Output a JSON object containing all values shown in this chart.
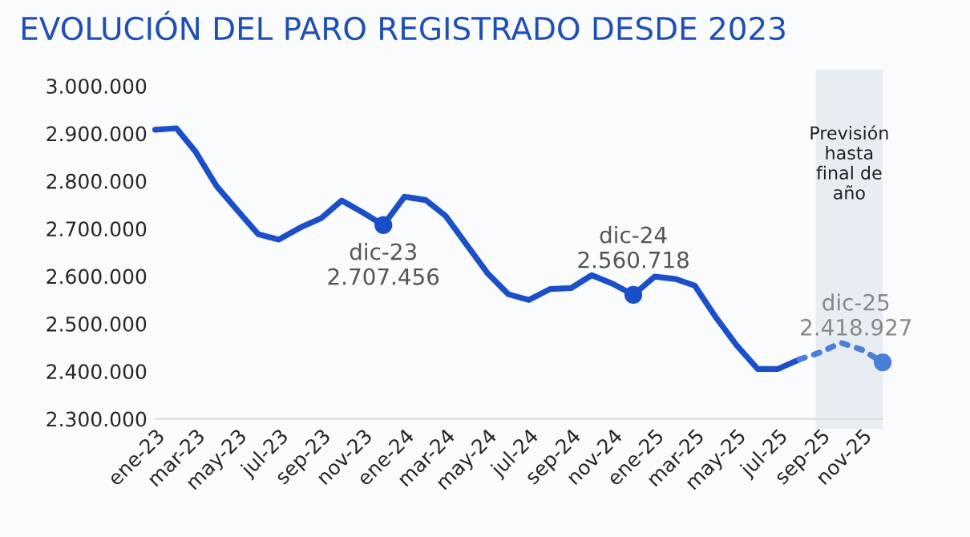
{
  "chart_data": {
    "type": "line",
    "title": "EVOLUCIÓN DEL PARO REGISTRADO DESDE 2023",
    "x": [
      "2023-01",
      "2023-02",
      "2023-03",
      "2023-04",
      "2023-05",
      "2023-06",
      "2023-07",
      "2023-08",
      "2023-09",
      "2023-10",
      "2023-11",
      "2023-12",
      "2024-01",
      "2024-02",
      "2024-03",
      "2024-04",
      "2024-05",
      "2024-06",
      "2024-07",
      "2024-08",
      "2024-09",
      "2024-10",
      "2024-11",
      "2024-12",
      "2025-01",
      "2025-02",
      "2025-03",
      "2025-04",
      "2025-05",
      "2025-06",
      "2025-07",
      "2025-08"
    ],
    "series": [
      {
        "color": "#1a4fc9",
        "line_style": "solid",
        "values": [
          2908000,
          2911000,
          2862000,
          2789000,
          2739000,
          2688000,
          2677000,
          2702000,
          2722000,
          2759000,
          2734000,
          2707456,
          2767000,
          2760000,
          2727000,
          2666000,
          2607000,
          2562000,
          2550000,
          2573000,
          2575000,
          2602000,
          2584000,
          2560718,
          2599000,
          2594000,
          2580000,
          2513000,
          2455000,
          2405000,
          2405000,
          2425000
        ]
      },
      {
        "color": "#4a7fd9",
        "line_style": "dotted",
        "x": [
          "2025-08",
          "2025-09",
          "2025-10",
          "2025-11",
          "2025-12"
        ],
        "values": [
          2425000,
          2440000,
          2460000,
          2445000,
          2418927
        ]
      }
    ],
    "xlim": [
      "2023-01",
      "2025-12"
    ],
    "xticks": [
      {
        "value": "2023-01",
        "label": "ene-23"
      },
      {
        "value": "2023-03",
        "label": "mar-23"
      },
      {
        "value": "2023-05",
        "label": "may-23"
      },
      {
        "value": "2023-07",
        "label": "jul-23"
      },
      {
        "value": "2023-09",
        "label": "sep-23"
      },
      {
        "value": "2023-11",
        "label": "nov-23"
      },
      {
        "value": "2024-01",
        "label": "ene-24"
      },
      {
        "value": "2024-03",
        "label": "mar-24"
      },
      {
        "value": "2024-05",
        "label": "may-24"
      },
      {
        "value": "2024-07",
        "label": "jul-24"
      },
      {
        "value": "2024-09",
        "label": "sep-24"
      },
      {
        "value": "2024-11",
        "label": "nov-24"
      },
      {
        "value": "2025-01",
        "label": "ene-25"
      },
      {
        "value": "2025-03",
        "label": "mar-25"
      },
      {
        "value": "2025-05",
        "label": "may-25"
      },
      {
        "value": "2025-07",
        "label": "jul-25"
      },
      {
        "value": "2025-09",
        "label": "sep-25"
      },
      {
        "value": "2025-11",
        "label": "nov-25"
      }
    ],
    "ylim": [
      2300000,
      3000000
    ],
    "yticks": [
      {
        "value": 2300000,
        "label": "2.300.000"
      },
      {
        "value": 2400000,
        "label": "2.400.000"
      },
      {
        "value": 2500000,
        "label": "2.500.000"
      },
      {
        "value": 2600000,
        "label": "2.600.000"
      },
      {
        "value": 2700000,
        "label": "2.700.000"
      },
      {
        "value": 2800000,
        "label": "2.800.000"
      },
      {
        "value": 2900000,
        "label": "2.900.000"
      },
      {
        "value": 3000000,
        "label": "3.000.000"
      }
    ],
    "bands": [
      {
        "axis": "x",
        "from": "2025-08-25",
        "to": "2025-12",
        "label": "Previsión\nhasta\nfinal de\naño",
        "color": "#e8edf4"
      }
    ],
    "annotations": [
      {
        "text": "dic-23\n2.707.456",
        "x": "2023-12",
        "y": 2707456
      },
      {
        "text": "dic-24\n2.560.718",
        "x": "2024-12",
        "y": 2560718
      },
      {
        "text": "dic-25\n2.418.927",
        "x": "2025-12",
        "y": 2418927
      }
    ],
    "grid": false,
    "legend": false,
    "marker": "none"
  }
}
